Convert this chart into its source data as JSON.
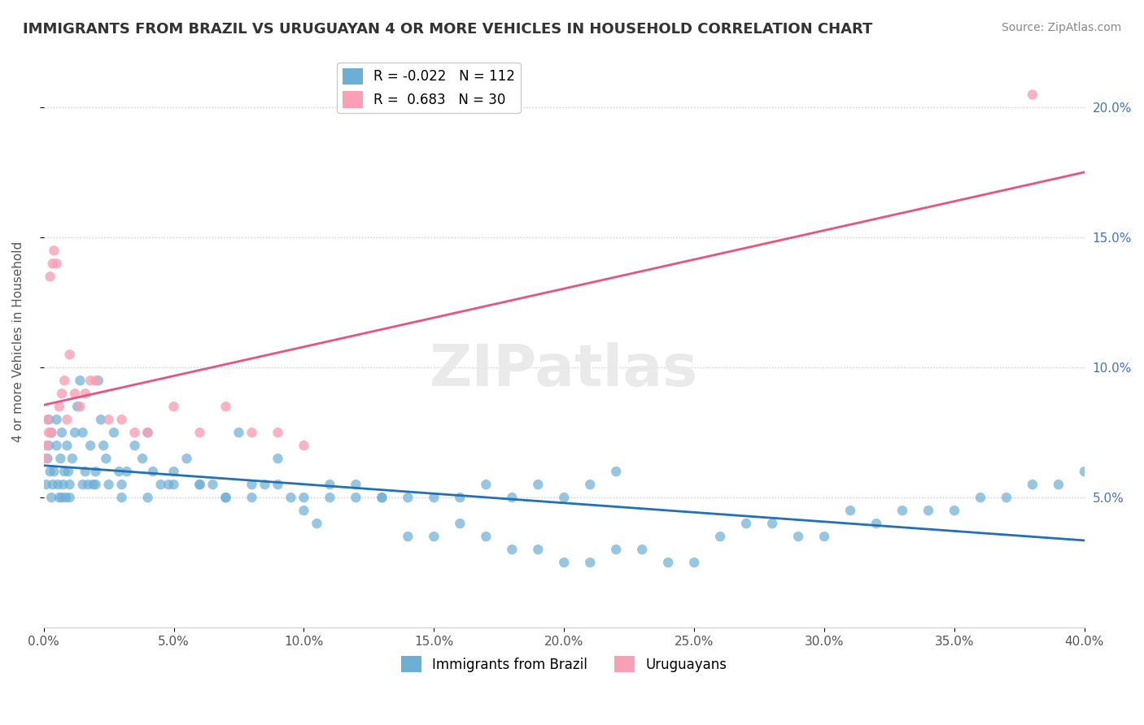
{
  "title": "IMMIGRANTS FROM BRAZIL VS URUGUAYAN 4 OR MORE VEHICLES IN HOUSEHOLD CORRELATION CHART",
  "source": "Source: ZipAtlas.com",
  "xlabel": "",
  "ylabel": "4 or more Vehicles in Household",
  "watermark": "ZIPatlas",
  "blue_R": -0.022,
  "blue_N": 112,
  "pink_R": 0.683,
  "pink_N": 30,
  "blue_color": "#6baed6",
  "pink_color": "#fa9fb5",
  "blue_line_color": "#2171b5",
  "pink_line_color": "#e75480",
  "xmin": 0.0,
  "xmax": 40.0,
  "ymin": 0.0,
  "ymax": 22.0,
  "yticks": [
    5.0,
    10.0,
    15.0,
    20.0
  ],
  "xticks": [
    0.0,
    5.0,
    10.0,
    15.0,
    20.0,
    25.0,
    30.0,
    35.0,
    40.0
  ],
  "blue_x": [
    0.1,
    0.15,
    0.2,
    0.25,
    0.3,
    0.35,
    0.4,
    0.5,
    0.55,
    0.6,
    0.65,
    0.7,
    0.75,
    0.8,
    0.85,
    0.9,
    0.95,
    1.0,
    1.1,
    1.2,
    1.3,
    1.4,
    1.5,
    1.6,
    1.7,
    1.8,
    1.9,
    2.0,
    2.1,
    2.2,
    2.3,
    2.4,
    2.5,
    2.7,
    2.9,
    3.0,
    3.2,
    3.5,
    3.8,
    4.0,
    4.2,
    4.5,
    4.8,
    5.0,
    5.5,
    6.0,
    6.5,
    7.0,
    7.5,
    8.0,
    8.5,
    9.0,
    9.5,
    10.0,
    10.5,
    11.0,
    12.0,
    13.0,
    14.0,
    15.0,
    16.0,
    17.0,
    18.0,
    19.0,
    20.0,
    21.0,
    22.0,
    23.0,
    24.0,
    25.0,
    26.0,
    27.0,
    28.0,
    29.0,
    30.0,
    31.0,
    32.0,
    33.0,
    34.0,
    35.0,
    36.0,
    37.0,
    38.0,
    39.0,
    40.0,
    0.2,
    0.3,
    0.5,
    0.7,
    1.0,
    1.5,
    2.0,
    3.0,
    4.0,
    5.0,
    6.0,
    7.0,
    8.0,
    9.0,
    10.0,
    11.0,
    12.0,
    13.0,
    14.0,
    15.0,
    16.0,
    17.0,
    18.0,
    19.0,
    20.0,
    21.0,
    22.0
  ],
  "blue_y": [
    5.5,
    6.5,
    7.0,
    6.0,
    5.0,
    5.5,
    6.0,
    8.0,
    5.5,
    5.0,
    6.5,
    5.0,
    5.5,
    6.0,
    5.0,
    7.0,
    6.0,
    5.5,
    6.5,
    7.5,
    8.5,
    9.5,
    7.5,
    6.0,
    5.5,
    7.0,
    5.5,
    6.0,
    9.5,
    8.0,
    7.0,
    6.5,
    5.5,
    7.5,
    6.0,
    5.0,
    6.0,
    7.0,
    6.5,
    7.5,
    6.0,
    5.5,
    5.5,
    6.0,
    6.5,
    5.5,
    5.5,
    5.0,
    7.5,
    5.5,
    5.5,
    6.5,
    5.0,
    4.5,
    4.0,
    5.5,
    5.0,
    5.0,
    3.5,
    3.5,
    4.0,
    3.5,
    3.0,
    3.0,
    2.5,
    2.5,
    3.0,
    3.0,
    2.5,
    2.5,
    3.5,
    4.0,
    4.0,
    3.5,
    3.5,
    4.5,
    4.0,
    4.5,
    4.5,
    4.5,
    5.0,
    5.0,
    5.5,
    5.5,
    6.0,
    8.0,
    7.5,
    7.0,
    7.5,
    5.0,
    5.5,
    5.5,
    5.5,
    5.0,
    5.5,
    5.5,
    5.0,
    5.0,
    5.5,
    5.0,
    5.0,
    5.5,
    5.0,
    5.0,
    5.0,
    5.0,
    5.5,
    5.0,
    5.5,
    5.0,
    5.5,
    6.0
  ],
  "pink_x": [
    0.05,
    0.1,
    0.15,
    0.2,
    0.25,
    0.3,
    0.35,
    0.4,
    0.5,
    0.6,
    0.7,
    0.8,
    0.9,
    1.0,
    1.2,
    1.4,
    1.6,
    1.8,
    2.0,
    2.5,
    3.0,
    3.5,
    4.0,
    5.0,
    6.0,
    7.0,
    8.0,
    9.0,
    10.0,
    38.0
  ],
  "pink_y": [
    6.5,
    7.0,
    8.0,
    7.5,
    13.5,
    7.5,
    14.0,
    14.5,
    14.0,
    8.5,
    9.0,
    9.5,
    8.0,
    10.5,
    9.0,
    8.5,
    9.0,
    9.5,
    9.5,
    8.0,
    8.0,
    7.5,
    7.5,
    8.5,
    7.5,
    8.5,
    7.5,
    7.5,
    7.0,
    20.5
  ]
}
